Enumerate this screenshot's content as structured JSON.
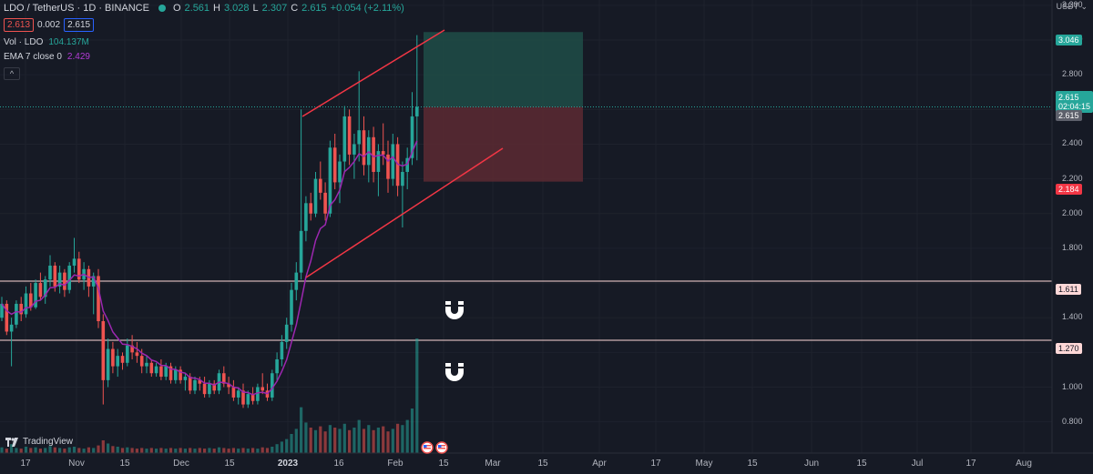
{
  "header": {
    "symbol_line": "LDO / TetherUS · 1D · BINANCE",
    "o_label": "O",
    "o_value": "2.561",
    "h_label": "H",
    "h_value": "3.028",
    "l_label": "L",
    "l_value": "2.307",
    "c_label": "C",
    "c_value": "2.615",
    "change": "+0.054 (+2.11%)"
  },
  "bid_ask": {
    "bid": "2.613",
    "spread": "0.002",
    "ask": "2.615"
  },
  "indicators": {
    "vol_label": "Vol · LDO",
    "vol_value": "104.137M",
    "ema_label": "EMA 7 close 0",
    "ema_value": "2.429",
    "collapse_glyph": "^"
  },
  "price_axis": {
    "currency": "USDT",
    "ticks": [
      "3.200",
      "3.000",
      "2.800",
      "2.400",
      "2.200",
      "2.000",
      "1.800",
      "1.400",
      "1.200",
      "1.000",
      "0.800"
    ],
    "labels": {
      "target": "3.046",
      "current": "2.615",
      "countdown": "02:04:15",
      "entry": "2.615",
      "stop": "2.184",
      "level_1": "1.611",
      "level_2": "1.270"
    }
  },
  "time_axis": [
    "17",
    "Nov",
    "15",
    "Dec",
    "15",
    "2023",
    "16",
    "Feb",
    "15",
    "Mar",
    "15",
    "Apr",
    "17",
    "May",
    "15",
    "Jun",
    "15",
    "Jul",
    "17",
    "Aug"
  ],
  "branding": {
    "logo_text": "TradingView"
  },
  "icons": [
    "magnet-icon",
    "magnet-icon",
    "flag-us-icon",
    "flag-us-icon"
  ],
  "colors": {
    "up": "#26a69a",
    "down": "#ef5350",
    "ema": "#9c27b0",
    "channel": "#f23645",
    "target_zone": "#1e4d48",
    "stop_zone": "#5c2a32"
  },
  "chart_data": {
    "type": "candlestick",
    "y_range": [
      0.7,
      3.25
    ],
    "ema_period": 7,
    "horizontal_levels": [
      1.611,
      1.27
    ],
    "position": {
      "entry": 2.615,
      "target": 3.046,
      "stop": 2.184
    },
    "candles": [
      [
        1.4,
        1.52,
        1.38,
        1.48
      ],
      [
        1.48,
        1.5,
        1.3,
        1.32
      ],
      [
        1.32,
        1.4,
        1.12,
        1.36
      ],
      [
        1.36,
        1.5,
        1.34,
        1.48
      ],
      [
        1.48,
        1.52,
        1.38,
        1.42
      ],
      [
        1.42,
        1.58,
        1.4,
        1.54
      ],
      [
        1.54,
        1.6,
        1.44,
        1.46
      ],
      [
        1.46,
        1.62,
        1.45,
        1.6
      ],
      [
        1.6,
        1.66,
        1.5,
        1.52
      ],
      [
        1.52,
        1.64,
        1.48,
        1.62
      ],
      [
        1.62,
        1.76,
        1.58,
        1.7
      ],
      [
        1.7,
        1.72,
        1.55,
        1.58
      ],
      [
        1.58,
        1.7,
        1.54,
        1.66
      ],
      [
        1.66,
        1.68,
        1.52,
        1.56
      ],
      [
        1.56,
        1.72,
        1.54,
        1.7
      ],
      [
        1.7,
        1.86,
        1.66,
        1.74
      ],
      [
        1.74,
        1.78,
        1.6,
        1.62
      ],
      [
        1.62,
        1.72,
        1.56,
        1.68
      ],
      [
        1.68,
        1.7,
        1.52,
        1.58
      ],
      [
        1.58,
        1.66,
        1.42,
        1.64
      ],
      [
        1.64,
        1.68,
        1.34,
        1.38
      ],
      [
        1.38,
        1.42,
        0.9,
        1.04
      ],
      [
        1.04,
        1.28,
        1.0,
        1.22
      ],
      [
        1.22,
        1.26,
        1.08,
        1.12
      ],
      [
        1.12,
        1.22,
        1.06,
        1.18
      ],
      [
        1.18,
        1.2,
        1.1,
        1.14
      ],
      [
        1.14,
        1.28,
        1.12,
        1.24
      ],
      [
        1.24,
        1.3,
        1.16,
        1.2
      ],
      [
        1.2,
        1.26,
        1.14,
        1.18
      ],
      [
        1.18,
        1.22,
        1.08,
        1.12
      ],
      [
        1.12,
        1.18,
        1.08,
        1.14
      ],
      [
        1.14,
        1.16,
        1.06,
        1.08
      ],
      [
        1.08,
        1.14,
        1.06,
        1.12
      ],
      [
        1.12,
        1.16,
        1.04,
        1.06
      ],
      [
        1.06,
        1.14,
        1.04,
        1.12
      ],
      [
        1.12,
        1.14,
        1.02,
        1.04
      ],
      [
        1.04,
        1.12,
        1.02,
        1.1
      ],
      [
        1.1,
        1.12,
        1.02,
        1.04
      ],
      [
        1.04,
        1.08,
        0.98,
        1.06
      ],
      [
        1.06,
        1.08,
        0.96,
        0.98
      ],
      [
        0.98,
        1.06,
        0.96,
        1.04
      ],
      [
        1.04,
        1.06,
        0.98,
        1.02
      ],
      [
        1.02,
        1.06,
        0.94,
        0.96
      ],
      [
        0.96,
        1.04,
        0.94,
        1.02
      ],
      [
        1.02,
        1.04,
        0.96,
        0.98
      ],
      [
        0.98,
        1.1,
        0.96,
        1.08
      ],
      [
        1.08,
        1.12,
        1.0,
        1.02
      ],
      [
        1.02,
        1.06,
        0.96,
        1.0
      ],
      [
        1.0,
        1.04,
        0.92,
        0.94
      ],
      [
        0.94,
        1.0,
        0.9,
        0.98
      ],
      [
        0.98,
        1.02,
        0.88,
        0.9
      ],
      [
        0.9,
        0.98,
        0.88,
        0.96
      ],
      [
        0.96,
        1.0,
        0.9,
        0.92
      ],
      [
        0.92,
        1.02,
        0.9,
        1.0
      ],
      [
        1.0,
        1.08,
        0.96,
        0.98
      ],
      [
        0.98,
        1.02,
        0.92,
        0.94
      ],
      [
        0.94,
        1.1,
        0.92,
        1.08
      ],
      [
        1.08,
        1.2,
        1.04,
        1.16
      ],
      [
        1.16,
        1.3,
        1.12,
        1.26
      ],
      [
        1.26,
        1.4,
        1.22,
        1.36
      ],
      [
        1.36,
        1.6,
        1.32,
        1.56
      ],
      [
        1.56,
        1.72,
        1.5,
        1.66
      ],
      [
        1.66,
        2.6,
        1.62,
        1.9
      ],
      [
        1.9,
        2.1,
        1.84,
        2.06
      ],
      [
        2.06,
        2.12,
        1.96,
        2.0
      ],
      [
        2.0,
        2.24,
        1.98,
        2.2
      ],
      [
        2.2,
        2.3,
        2.08,
        2.12
      ],
      [
        2.12,
        2.18,
        1.96,
        2.0
      ],
      [
        2.0,
        2.42,
        1.98,
        2.38
      ],
      [
        2.38,
        2.46,
        2.14,
        2.18
      ],
      [
        2.18,
        2.34,
        2.06,
        2.3
      ],
      [
        2.3,
        2.62,
        2.24,
        2.56
      ],
      [
        2.56,
        2.6,
        2.28,
        2.34
      ],
      [
        2.34,
        2.46,
        2.2,
        2.4
      ],
      [
        2.4,
        2.82,
        2.3,
        2.48
      ],
      [
        2.48,
        2.56,
        2.22,
        2.28
      ],
      [
        2.28,
        2.48,
        2.18,
        2.44
      ],
      [
        2.44,
        2.5,
        2.18,
        2.24
      ],
      [
        2.24,
        2.4,
        2.1,
        2.36
      ],
      [
        2.36,
        2.52,
        2.28,
        2.34
      ],
      [
        2.34,
        2.42,
        2.12,
        2.2
      ],
      [
        2.2,
        2.46,
        2.16,
        2.4
      ],
      [
        2.4,
        2.44,
        2.1,
        2.16
      ],
      [
        2.16,
        2.3,
        1.92,
        2.24
      ],
      [
        2.24,
        2.38,
        2.14,
        2.32
      ],
      [
        2.32,
        2.7,
        2.28,
        2.56
      ],
      [
        2.56,
        3.028,
        2.307,
        2.615
      ]
    ],
    "volume": [
      9,
      7,
      14,
      8,
      7,
      10,
      8,
      9,
      7,
      8,
      11,
      9,
      8,
      7,
      9,
      10,
      8,
      7,
      9,
      8,
      12,
      20,
      15,
      11,
      10,
      8,
      9,
      8,
      7,
      8,
      7,
      8,
      7,
      8,
      7,
      8,
      7,
      8,
      7,
      8,
      7,
      8,
      7,
      8,
      7,
      9,
      8,
      7,
      8,
      7,
      8,
      7,
      8,
      7,
      9,
      8,
      10,
      14,
      18,
      22,
      30,
      38,
      72,
      48,
      40,
      36,
      42,
      34,
      44,
      40,
      38,
      46,
      36,
      40,
      52,
      38,
      44,
      36,
      40,
      42,
      34,
      38,
      46,
      44,
      52,
      70,
      180
    ]
  }
}
